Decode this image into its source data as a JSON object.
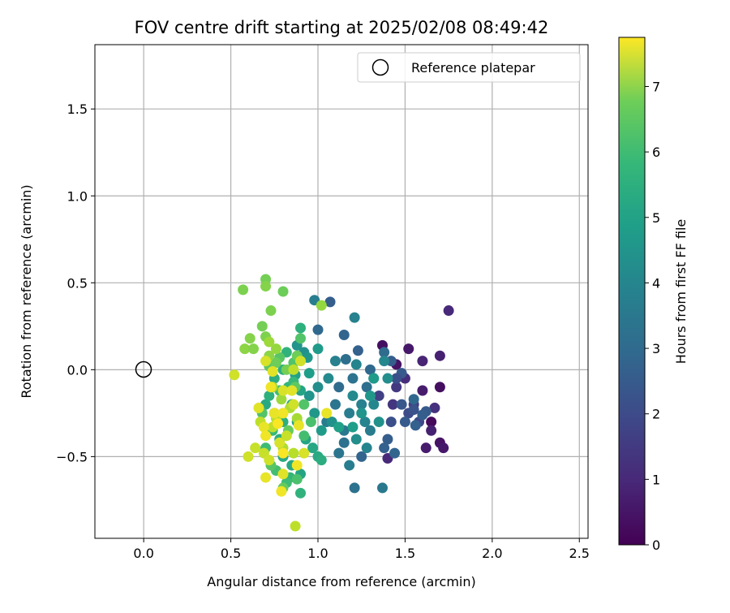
{
  "chart_data": {
    "type": "scatter",
    "title": "FOV centre drift starting at 2025/02/08 08:49:42",
    "xlabel": "Angular distance from reference (arcmin)",
    "ylabel": "Rotation from reference (arcmin)",
    "xlim": [
      -0.28,
      2.55
    ],
    "ylim": [
      -0.97,
      1.87
    ],
    "x_ticks": [
      0.0,
      0.5,
      1.0,
      1.5,
      2.0,
      2.5
    ],
    "x_tick_labels": [
      "0.0",
      "0.5",
      "1.0",
      "1.5",
      "2.0",
      "2.5"
    ],
    "y_ticks": [
      -0.5,
      0.0,
      0.5,
      1.0,
      1.5
    ],
    "y_tick_labels": [
      "−0.5",
      "0.0",
      "0.5",
      "1.0",
      "1.5"
    ],
    "grid": true,
    "legend": {
      "placement": "top-right",
      "entries": [
        "Reference platepar"
      ]
    },
    "reference_point": {
      "x": 0.0,
      "y": 0.0
    },
    "colorbar": {
      "label": "Hours from first FF file",
      "colormap": "viridis",
      "range": [
        0,
        7.75
      ],
      "ticks": [
        0,
        1,
        2,
        3,
        4,
        5,
        6,
        7
      ],
      "tick_labels": [
        "0",
        "1",
        "2",
        "3",
        "4",
        "5",
        "6",
        "7"
      ]
    },
    "points": [
      {
        "x": 1.37,
        "y": 0.14,
        "h": 0.3
      },
      {
        "x": 1.52,
        "y": 0.12,
        "h": 0.5
      },
      {
        "x": 1.6,
        "y": 0.05,
        "h": 0.8
      },
      {
        "x": 1.7,
        "y": 0.08,
        "h": 0.7
      },
      {
        "x": 1.75,
        "y": 0.34,
        "h": 0.9
      },
      {
        "x": 1.45,
        "y": 0.03,
        "h": 0.4
      },
      {
        "x": 1.5,
        "y": -0.05,
        "h": 1.0
      },
      {
        "x": 1.6,
        "y": -0.12,
        "h": 0.6
      },
      {
        "x": 1.7,
        "y": -0.1,
        "h": 0.3
      },
      {
        "x": 1.65,
        "y": -0.3,
        "h": 0.2
      },
      {
        "x": 1.7,
        "y": -0.42,
        "h": 0.4
      },
      {
        "x": 1.72,
        "y": -0.45,
        "h": 0.5
      },
      {
        "x": 1.62,
        "y": -0.45,
        "h": 0.6
      },
      {
        "x": 1.65,
        "y": -0.35,
        "h": 0.7
      },
      {
        "x": 1.67,
        "y": -0.22,
        "h": 1.1
      },
      {
        "x": 1.4,
        "y": -0.51,
        "h": 0.9
      },
      {
        "x": 1.43,
        "y": -0.2,
        "h": 1.2
      },
      {
        "x": 1.45,
        "y": -0.1,
        "h": 1.3
      },
      {
        "x": 1.55,
        "y": -0.2,
        "h": 1.4
      },
      {
        "x": 1.35,
        "y": -0.15,
        "h": 1.5
      },
      {
        "x": 1.32,
        "y": -0.05,
        "h": 1.6
      },
      {
        "x": 1.58,
        "y": -0.3,
        "h": 1.7
      },
      {
        "x": 1.52,
        "y": -0.25,
        "h": 1.8
      },
      {
        "x": 1.42,
        "y": -0.3,
        "h": 1.9
      },
      {
        "x": 1.55,
        "y": -0.23,
        "h": 2.0
      },
      {
        "x": 1.48,
        "y": -0.2,
        "h": 2.1
      },
      {
        "x": 1.62,
        "y": -0.24,
        "h": 2.2
      },
      {
        "x": 1.5,
        "y": -0.3,
        "h": 2.2
      },
      {
        "x": 1.4,
        "y": -0.4,
        "h": 2.3
      },
      {
        "x": 1.38,
        "y": -0.45,
        "h": 2.4
      },
      {
        "x": 1.25,
        "y": -0.5,
        "h": 2.5
      },
      {
        "x": 1.44,
        "y": -0.48,
        "h": 2.5
      },
      {
        "x": 1.56,
        "y": -0.32,
        "h": 2.4
      },
      {
        "x": 1.6,
        "y": -0.26,
        "h": 2.3
      },
      {
        "x": 1.55,
        "y": -0.17,
        "h": 2.6
      },
      {
        "x": 1.48,
        "y": -0.02,
        "h": 2.2
      },
      {
        "x": 1.45,
        "y": -0.05,
        "h": 1.9
      },
      {
        "x": 1.42,
        "y": 0.05,
        "h": 2.3
      },
      {
        "x": 1.38,
        "y": 0.1,
        "h": 2.7
      },
      {
        "x": 1.23,
        "y": 0.11,
        "h": 2.4
      },
      {
        "x": 1.3,
        "y": 0.0,
        "h": 2.6
      },
      {
        "x": 1.28,
        "y": -0.1,
        "h": 2.8
      },
      {
        "x": 1.2,
        "y": -0.05,
        "h": 2.9
      },
      {
        "x": 1.12,
        "y": -0.1,
        "h": 2.7
      },
      {
        "x": 1.15,
        "y": 0.2,
        "h": 2.5
      },
      {
        "x": 1.16,
        "y": 0.06,
        "h": 2.8
      },
      {
        "x": 1.07,
        "y": 0.39,
        "h": 2.3
      },
      {
        "x": 1.0,
        "y": 0.23,
        "h": 2.6
      },
      {
        "x": 1.21,
        "y": -0.68,
        "h": 2.9
      },
      {
        "x": 1.37,
        "y": -0.68,
        "h": 3.1
      },
      {
        "x": 1.21,
        "y": 0.3,
        "h": 3.4
      },
      {
        "x": 0.98,
        "y": 0.4,
        "h": 3.3
      },
      {
        "x": 1.1,
        "y": -0.2,
        "h": 3.0
      },
      {
        "x": 1.05,
        "y": -0.3,
        "h": 3.2
      },
      {
        "x": 1.15,
        "y": -0.35,
        "h": 3.1
      },
      {
        "x": 1.18,
        "y": -0.25,
        "h": 3.3
      },
      {
        "x": 1.25,
        "y": -0.2,
        "h": 3.4
      },
      {
        "x": 1.27,
        "y": -0.3,
        "h": 3.5
      },
      {
        "x": 1.3,
        "y": -0.35,
        "h": 3.2
      },
      {
        "x": 1.32,
        "y": -0.2,
        "h": 3.6
      },
      {
        "x": 1.2,
        "y": -0.15,
        "h": 3.7
      },
      {
        "x": 1.22,
        "y": -0.4,
        "h": 3.8
      },
      {
        "x": 1.15,
        "y": -0.42,
        "h": 2.9
      },
      {
        "x": 1.12,
        "y": -0.48,
        "h": 3.0
      },
      {
        "x": 1.18,
        "y": -0.55,
        "h": 3.3
      },
      {
        "x": 1.28,
        "y": -0.45,
        "h": 3.5
      },
      {
        "x": 1.35,
        "y": -0.3,
        "h": 3.9
      },
      {
        "x": 1.4,
        "y": -0.05,
        "h": 3.8
      },
      {
        "x": 1.38,
        "y": 0.05,
        "h": 3.6
      },
      {
        "x": 1.22,
        "y": 0.03,
        "h": 3.5
      },
      {
        "x": 1.1,
        "y": 0.05,
        "h": 3.4
      },
      {
        "x": 1.06,
        "y": -0.05,
        "h": 3.7
      },
      {
        "x": 1.0,
        "y": -0.1,
        "h": 3.8
      },
      {
        "x": 0.95,
        "y": -0.15,
        "h": 4.0
      },
      {
        "x": 0.98,
        "y": -0.25,
        "h": 4.1
      },
      {
        "x": 1.02,
        "y": -0.35,
        "h": 4.2
      },
      {
        "x": 1.08,
        "y": -0.3,
        "h": 3.9
      },
      {
        "x": 1.25,
        "y": -0.25,
        "h": 4.0
      },
      {
        "x": 1.3,
        "y": -0.15,
        "h": 4.1
      },
      {
        "x": 1.32,
        "y": -0.05,
        "h": 4.2
      },
      {
        "x": 1.2,
        "y": -0.33,
        "h": 4.3
      },
      {
        "x": 1.12,
        "y": -0.33,
        "h": 4.4
      },
      {
        "x": 0.92,
        "y": 0.1,
        "h": 3.9
      },
      {
        "x": 0.88,
        "y": 0.14,
        "h": 4.0
      },
      {
        "x": 0.94,
        "y": 0.07,
        "h": 4.1
      },
      {
        "x": 1.0,
        "y": 0.12,
        "h": 4.2
      },
      {
        "x": 0.95,
        "y": -0.02,
        "h": 4.3
      },
      {
        "x": 0.87,
        "y": -0.03,
        "h": 4.4
      },
      {
        "x": 0.9,
        "y": -0.12,
        "h": 4.5
      },
      {
        "x": 0.85,
        "y": -0.2,
        "h": 4.6
      },
      {
        "x": 0.88,
        "y": -0.3,
        "h": 4.4
      },
      {
        "x": 0.93,
        "y": -0.4,
        "h": 4.5
      },
      {
        "x": 0.97,
        "y": -0.45,
        "h": 4.6
      },
      {
        "x": 1.0,
        "y": -0.5,
        "h": 4.7
      },
      {
        "x": 1.02,
        "y": -0.52,
        "h": 4.8
      },
      {
        "x": 0.9,
        "y": -0.6,
        "h": 4.5
      },
      {
        "x": 0.85,
        "y": -0.55,
        "h": 4.6
      },
      {
        "x": 0.8,
        "y": -0.5,
        "h": 4.7
      },
      {
        "x": 0.78,
        "y": -0.4,
        "h": 4.8
      },
      {
        "x": 0.8,
        "y": -0.3,
        "h": 4.9
      },
      {
        "x": 0.75,
        "y": -0.25,
        "h": 4.4
      },
      {
        "x": 0.7,
        "y": -0.2,
        "h": 4.7
      },
      {
        "x": 0.72,
        "y": -0.15,
        "h": 4.9
      },
      {
        "x": 0.75,
        "y": -0.05,
        "h": 4.8
      },
      {
        "x": 0.8,
        "y": 0.0,
        "h": 4.9
      },
      {
        "x": 0.82,
        "y": 0.1,
        "h": 5.0
      },
      {
        "x": 0.9,
        "y": 0.24,
        "h": 4.9
      },
      {
        "x": 0.9,
        "y": -0.71,
        "h": 5.0
      },
      {
        "x": 0.84,
        "y": -0.62,
        "h": 5.1
      },
      {
        "x": 0.83,
        "y": -0.1,
        "h": 5.1
      },
      {
        "x": 0.86,
        "y": -0.07,
        "h": 5.2
      },
      {
        "x": 0.78,
        "y": -0.12,
        "h": 5.3
      },
      {
        "x": 0.74,
        "y": -0.35,
        "h": 5.2
      },
      {
        "x": 0.7,
        "y": -0.45,
        "h": 5.3
      },
      {
        "x": 0.76,
        "y": -0.58,
        "h": 5.4
      },
      {
        "x": 0.82,
        "y": -0.65,
        "h": 5.3
      },
      {
        "x": 0.88,
        "y": -0.63,
        "h": 5.5
      },
      {
        "x": 0.92,
        "y": -0.38,
        "h": 5.4
      },
      {
        "x": 0.96,
        "y": -0.3,
        "h": 5.5
      },
      {
        "x": 0.92,
        "y": -0.2,
        "h": 5.6
      },
      {
        "x": 0.86,
        "y": 0.04,
        "h": 5.6
      },
      {
        "x": 0.78,
        "y": 0.07,
        "h": 5.7
      },
      {
        "x": 0.72,
        "y": 0.02,
        "h": 5.8
      },
      {
        "x": 0.68,
        "y": -0.25,
        "h": 5.6
      },
      {
        "x": 0.73,
        "y": -0.55,
        "h": 5.7
      },
      {
        "x": 0.8,
        "y": -0.68,
        "h": 5.9
      },
      {
        "x": 0.9,
        "y": 0.18,
        "h": 5.6
      },
      {
        "x": 0.83,
        "y": -0.35,
        "h": 5.9
      },
      {
        "x": 0.88,
        "y": 0.08,
        "h": 6.0
      },
      {
        "x": 0.82,
        "y": 0.0,
        "h": 6.1
      },
      {
        "x": 0.87,
        "y": -0.1,
        "h": 5.8
      },
      {
        "x": 0.76,
        "y": 0.04,
        "h": 6.0
      },
      {
        "x": 0.7,
        "y": 0.52,
        "h": 6.1
      },
      {
        "x": 0.8,
        "y": 0.45,
        "h": 6.0
      },
      {
        "x": 0.57,
        "y": 0.46,
        "h": 6.2
      },
      {
        "x": 0.68,
        "y": 0.25,
        "h": 6.1
      },
      {
        "x": 0.61,
        "y": 0.18,
        "h": 6.3
      },
      {
        "x": 0.58,
        "y": 0.12,
        "h": 6.4
      },
      {
        "x": 0.63,
        "y": 0.12,
        "h": 6.3
      },
      {
        "x": 0.7,
        "y": 0.19,
        "h": 6.2
      },
      {
        "x": 0.73,
        "y": 0.34,
        "h": 6.2
      },
      {
        "x": 1.02,
        "y": 0.37,
        "h": 6.5
      },
      {
        "x": 0.72,
        "y": 0.08,
        "h": 6.4
      },
      {
        "x": 0.76,
        "y": 0.12,
        "h": 6.5
      },
      {
        "x": 0.7,
        "y": 0.48,
        "h": 6.3
      },
      {
        "x": 0.72,
        "y": 0.16,
        "h": 6.6
      },
      {
        "x": 0.74,
        "y": -0.1,
        "h": 6.7
      },
      {
        "x": 0.79,
        "y": -0.17,
        "h": 6.6
      },
      {
        "x": 0.84,
        "y": -0.22,
        "h": 6.8
      },
      {
        "x": 0.88,
        "y": -0.28,
        "h": 6.7
      },
      {
        "x": 0.86,
        "y": -0.48,
        "h": 6.9
      },
      {
        "x": 0.8,
        "y": -0.45,
        "h": 6.8
      },
      {
        "x": 0.74,
        "y": -0.33,
        "h": 7.0
      },
      {
        "x": 0.76,
        "y": -0.28,
        "h": 6.9
      },
      {
        "x": 0.67,
        "y": -0.3,
        "h": 7.0
      },
      {
        "x": 0.64,
        "y": -0.45,
        "h": 7.1
      },
      {
        "x": 0.6,
        "y": -0.5,
        "h": 7.2
      },
      {
        "x": 0.69,
        "y": -0.48,
        "h": 7.1
      },
      {
        "x": 0.72,
        "y": -0.52,
        "h": 7.2
      },
      {
        "x": 0.78,
        "y": -0.42,
        "h": 7.3
      },
      {
        "x": 0.82,
        "y": -0.38,
        "h": 7.1
      },
      {
        "x": 0.86,
        "y": -0.2,
        "h": 7.2
      },
      {
        "x": 0.8,
        "y": -0.12,
        "h": 7.3
      },
      {
        "x": 0.74,
        "y": -0.01,
        "h": 7.4
      },
      {
        "x": 0.7,
        "y": 0.05,
        "h": 7.3
      },
      {
        "x": 0.52,
        "y": -0.03,
        "h": 7.2
      },
      {
        "x": 0.66,
        "y": -0.22,
        "h": 7.4
      },
      {
        "x": 0.69,
        "y": -0.33,
        "h": 7.5
      },
      {
        "x": 0.75,
        "y": -0.25,
        "h": 7.5
      },
      {
        "x": 0.8,
        "y": -0.25,
        "h": 7.6
      },
      {
        "x": 0.85,
        "y": -0.12,
        "h": 7.4
      },
      {
        "x": 0.89,
        "y": -0.32,
        "h": 7.5
      },
      {
        "x": 0.92,
        "y": -0.48,
        "h": 7.3
      },
      {
        "x": 0.88,
        "y": -0.55,
        "h": 7.6
      },
      {
        "x": 0.8,
        "y": -0.6,
        "h": 7.4
      },
      {
        "x": 0.7,
        "y": -0.62,
        "h": 7.5
      },
      {
        "x": 0.79,
        "y": -0.7,
        "h": 7.6
      },
      {
        "x": 0.87,
        "y": -0.9,
        "h": 7.0
      },
      {
        "x": 0.7,
        "y": -0.38,
        "h": 7.6
      },
      {
        "x": 0.77,
        "y": -0.31,
        "h": 7.7
      },
      {
        "x": 0.86,
        "y": 0.0,
        "h": 7.0
      },
      {
        "x": 0.9,
        "y": 0.05,
        "h": 7.2
      },
      {
        "x": 1.05,
        "y": -0.25,
        "h": 7.5
      },
      {
        "x": 0.73,
        "y": -0.1,
        "h": 7.6
      },
      {
        "x": 0.8,
        "y": -0.48,
        "h": 7.7
      }
    ]
  }
}
